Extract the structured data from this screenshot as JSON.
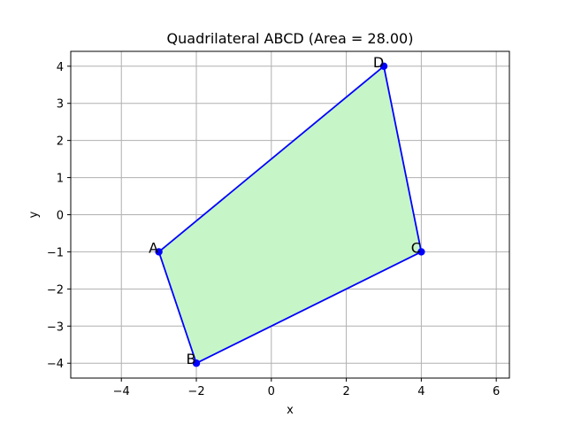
{
  "chart_data": {
    "type": "scatter",
    "title": "Quadrilateral ABCD (Area = 28.00)",
    "xlabel": "x",
    "ylabel": "y",
    "xlim": [
      -5.35,
      6.35
    ],
    "ylim": [
      -4.4,
      4.4
    ],
    "grid": true,
    "xticks": [
      -4,
      -2,
      0,
      2,
      4,
      6
    ],
    "xtick_labels": [
      "−4",
      "−2",
      "0",
      "2",
      "4",
      "6"
    ],
    "yticks": [
      -4,
      -3,
      -2,
      -1,
      0,
      1,
      2,
      3,
      4
    ],
    "ytick_labels": [
      "−4",
      "−3",
      "−2",
      "−1",
      "0",
      "1",
      "2",
      "3",
      "4"
    ],
    "points": [
      {
        "label": "A",
        "x": -3,
        "y": -1
      },
      {
        "label": "B",
        "x": -2,
        "y": -4
      },
      {
        "label": "C",
        "x": 4,
        "y": -1
      },
      {
        "label": "D",
        "x": 3,
        "y": 4
      }
    ],
    "fill_color": "#c6f5c8",
    "edge_color": "#0000ff",
    "marker_color": "#0000ff"
  }
}
